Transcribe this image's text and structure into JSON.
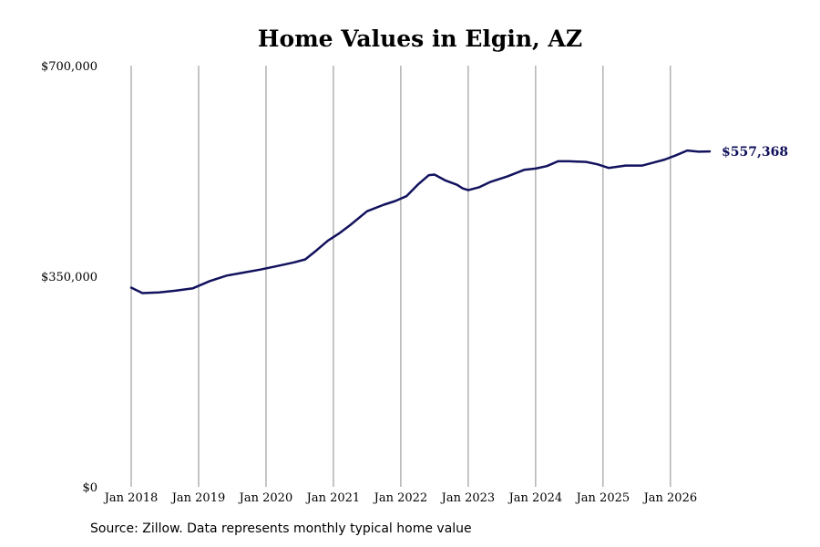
{
  "source_note": "Source: Zillow. Data represents monthly typical home value",
  "colors": {
    "line": "#12125e",
    "gridline": "#8c8c8c",
    "end_label": "#0e0e5a"
  },
  "chart_data": {
    "type": "line",
    "title": "Home Values in Elgin, AZ",
    "xlabel": "",
    "ylabel": "",
    "ylim": [
      0,
      700000
    ],
    "xlim": [
      "2018-01",
      "2026-08"
    ],
    "grid": "vertical",
    "legend": "none",
    "y_ticks": [
      {
        "value": 0,
        "label": "$0"
      },
      {
        "value": 350000,
        "label": "$350,000"
      },
      {
        "value": 700000,
        "label": "$700,000"
      }
    ],
    "x_ticks": [
      {
        "value": "2018-01",
        "label": "Jan 2018"
      },
      {
        "value": "2019-01",
        "label": "Jan 2019"
      },
      {
        "value": "2020-01",
        "label": "Jan 2020"
      },
      {
        "value": "2021-01",
        "label": "Jan 2021"
      },
      {
        "value": "2022-01",
        "label": "Jan 2022"
      },
      {
        "value": "2023-01",
        "label": "Jan 2023"
      },
      {
        "value": "2024-01",
        "label": "Jan 2024"
      },
      {
        "value": "2025-01",
        "label": "Jan 2025"
      },
      {
        "value": "2026-01",
        "label": "Jan 2026"
      }
    ],
    "end_label": "$557,368",
    "series": [
      {
        "points": [
          [
            "2018-01",
            331000
          ],
          [
            "2018-03",
            322000
          ],
          [
            "2018-06",
            323000
          ],
          [
            "2018-09",
            326000
          ],
          [
            "2018-12",
            330000
          ],
          [
            "2019-03",
            342000
          ],
          [
            "2019-06",
            351000
          ],
          [
            "2019-09",
            356000
          ],
          [
            "2019-12",
            361000
          ],
          [
            "2020-03",
            367000
          ],
          [
            "2020-06",
            373000
          ],
          [
            "2020-08",
            378000
          ],
          [
            "2020-10",
            393000
          ],
          [
            "2020-12",
            409000
          ],
          [
            "2021-02",
            421000
          ],
          [
            "2021-04",
            435000
          ],
          [
            "2021-07",
            458000
          ],
          [
            "2021-10",
            469000
          ],
          [
            "2021-12",
            475000
          ],
          [
            "2022-02",
            483000
          ],
          [
            "2022-04",
            502000
          ],
          [
            "2022-06",
            518000
          ],
          [
            "2022-07",
            519000
          ],
          [
            "2022-09",
            509000
          ],
          [
            "2022-11",
            502000
          ],
          [
            "2022-12",
            496000
          ],
          [
            "2023-01",
            493000
          ],
          [
            "2023-03",
            498000
          ],
          [
            "2023-05",
            507000
          ],
          [
            "2023-08",
            516000
          ],
          [
            "2023-11",
            527000
          ],
          [
            "2024-01",
            529000
          ],
          [
            "2024-03",
            533000
          ],
          [
            "2024-05",
            541000
          ],
          [
            "2024-07",
            541000
          ],
          [
            "2024-10",
            540000
          ],
          [
            "2024-12",
            536000
          ],
          [
            "2025-02",
            530000
          ],
          [
            "2025-05",
            534000
          ],
          [
            "2025-08",
            534000
          ],
          [
            "2025-10",
            539000
          ],
          [
            "2025-12",
            544000
          ],
          [
            "2026-02",
            551000
          ],
          [
            "2026-04",
            559000
          ],
          [
            "2026-06",
            557000
          ],
          [
            "2026-08",
            557368
          ]
        ]
      }
    ]
  }
}
